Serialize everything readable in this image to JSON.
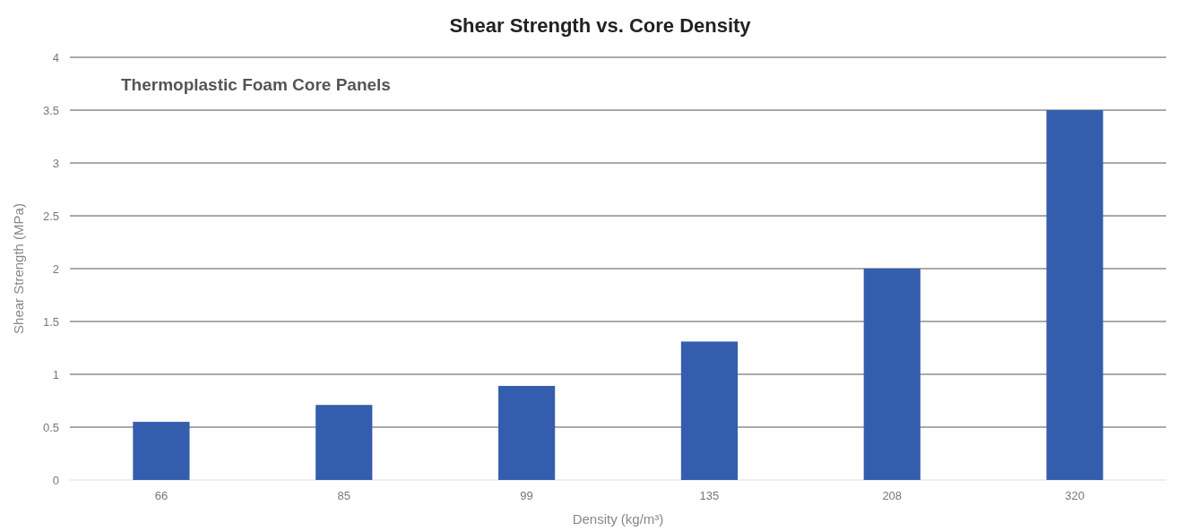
{
  "chart_data": {
    "type": "bar",
    "title": "Shear Strength vs. Core Density",
    "subtitle": "Thermoplastic Foam Core Panels",
    "xlabel": "Density (kg/m³)",
    "ylabel": "Shear Strength (MPa)",
    "categories": [
      "66",
      "85",
      "99",
      "135",
      "208",
      "320"
    ],
    "values": [
      0.55,
      0.71,
      0.89,
      1.31,
      2.0,
      3.5
    ],
    "color": "#355dad",
    "ylim": [
      0,
      4
    ],
    "yticks": [
      0,
      0.5,
      1,
      1.5,
      2,
      2.5,
      3,
      3.5,
      4
    ],
    "grid": "y"
  }
}
